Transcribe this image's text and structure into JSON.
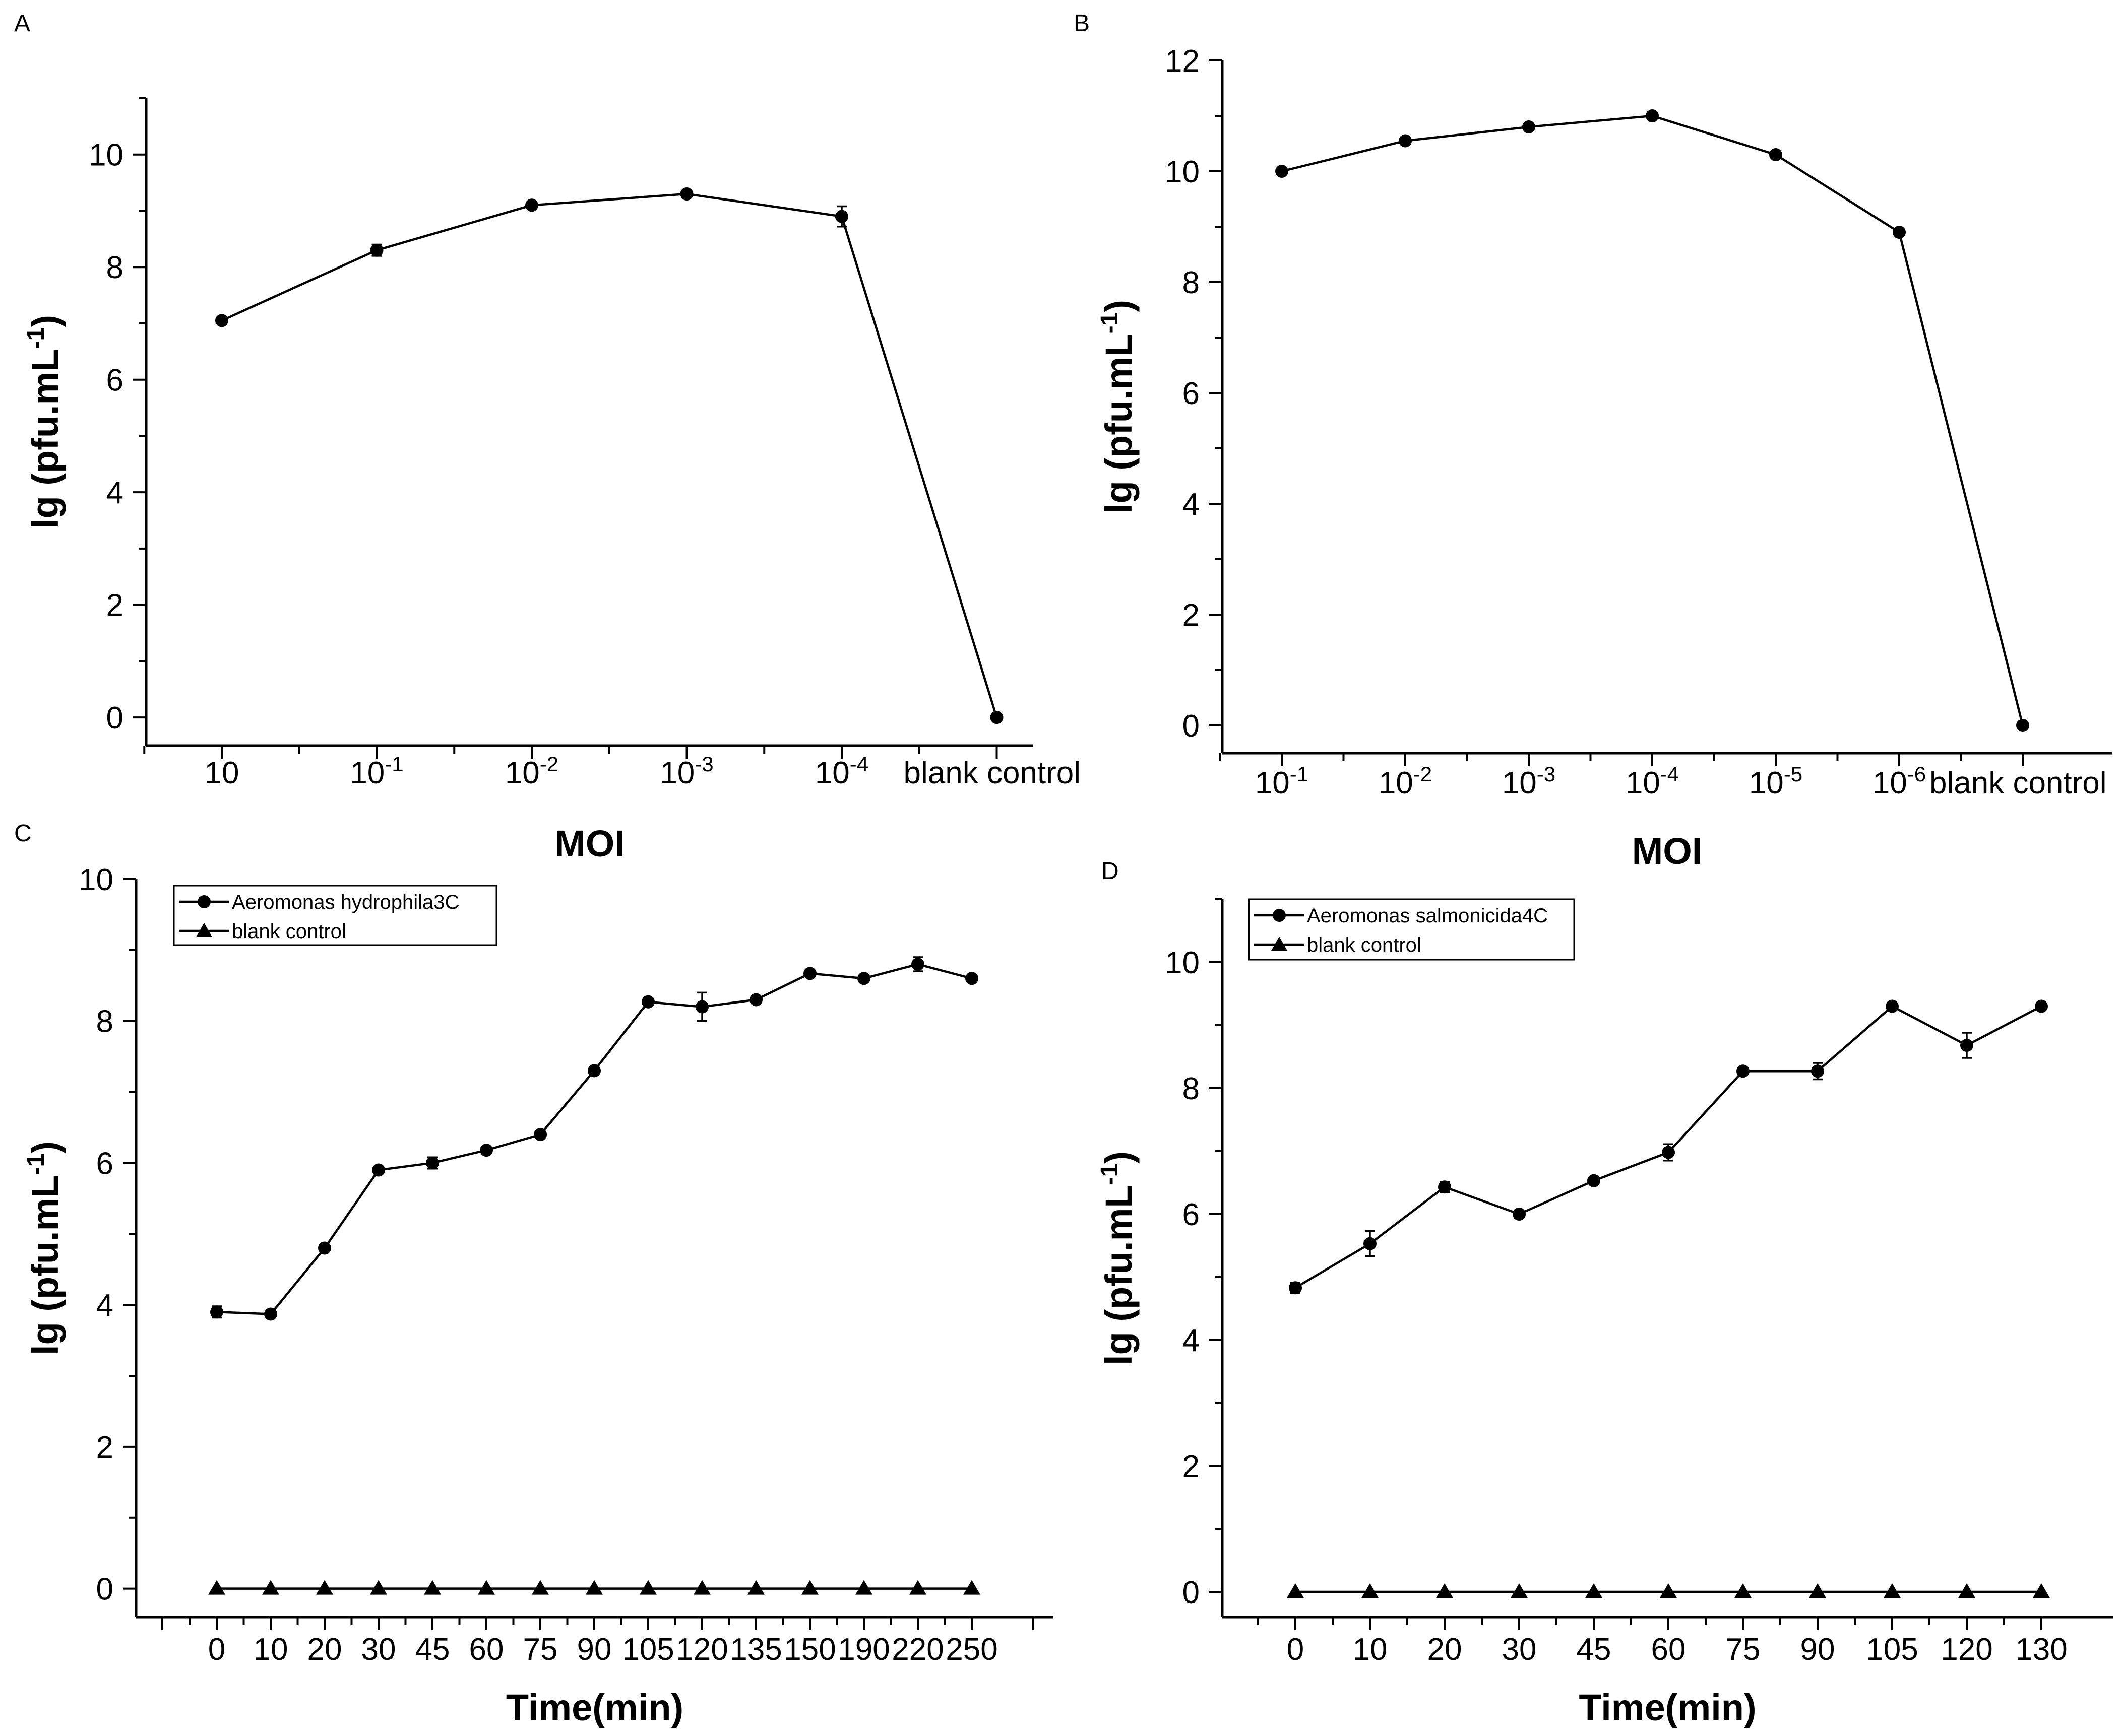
{
  "chart_data": [
    {
      "panel": "A",
      "type": "line",
      "categories": [
        "10",
        "10-1",
        "10-2",
        "10-3",
        "10-4",
        "blank control"
      ],
      "tick_labels": [
        {
          "base": "10",
          "exp": ""
        },
        {
          "base": "10",
          "exp": "-1"
        },
        {
          "base": "10",
          "exp": "-2"
        },
        {
          "base": "10",
          "exp": "-3"
        },
        {
          "base": "10",
          "exp": "-4"
        },
        {
          "base": "blank control",
          "exp": ""
        }
      ],
      "series": [
        {
          "name": "",
          "marker": "circle",
          "values": [
            7.05,
            8.3,
            9.1,
            9.3,
            8.9,
            0.0
          ],
          "errors": [
            0.05,
            0.1,
            0.05,
            0.05,
            0.18,
            0.0
          ]
        }
      ],
      "title": "",
      "xlabel": "MOI",
      "ylabel": "lg (pfu.mL",
      "ylabel_sup": "-1",
      "ylabel_close": ")",
      "ylim": [
        -0.5,
        11
      ],
      "yticks": [
        0,
        2,
        4,
        6,
        8,
        10
      ],
      "legend": null
    },
    {
      "panel": "B",
      "type": "line",
      "categories": [
        "10-1",
        "10-2",
        "10-3",
        "10-4",
        "10-5",
        "10-6",
        "blank control"
      ],
      "tick_labels": [
        {
          "base": "10",
          "exp": "-1"
        },
        {
          "base": "10",
          "exp": "-2"
        },
        {
          "base": "10",
          "exp": "-3"
        },
        {
          "base": "10",
          "exp": "-4"
        },
        {
          "base": "10",
          "exp": "-5"
        },
        {
          "base": "10",
          "exp": "-6"
        },
        {
          "base": "blank control",
          "exp": ""
        }
      ],
      "series": [
        {
          "name": "",
          "marker": "circle",
          "values": [
            10.0,
            10.55,
            10.8,
            11.0,
            10.3,
            8.9,
            0.0
          ],
          "errors": [
            0.05,
            0.05,
            0.05,
            0.05,
            0.05,
            0.05,
            0.0
          ]
        }
      ],
      "title": "",
      "xlabel": "MOI",
      "ylabel": "lg (pfu.mL",
      "ylabel_sup": "-1",
      "ylabel_close": ")",
      "ylim": [
        -0.5,
        12
      ],
      "yticks": [
        0,
        2,
        4,
        6,
        8,
        10,
        12
      ],
      "legend": null
    },
    {
      "panel": "C",
      "type": "line",
      "categories": [
        "0",
        "10",
        "20",
        "30",
        "45",
        "60",
        "75",
        "90",
        "105",
        "120",
        "135",
        "150",
        "190",
        "220",
        "250"
      ],
      "tick_labels": [
        {
          "base": "0",
          "exp": ""
        },
        {
          "base": "10",
          "exp": ""
        },
        {
          "base": "20",
          "exp": ""
        },
        {
          "base": "30",
          "exp": ""
        },
        {
          "base": "45",
          "exp": ""
        },
        {
          "base": "60",
          "exp": ""
        },
        {
          "base": "75",
          "exp": ""
        },
        {
          "base": "90",
          "exp": ""
        },
        {
          "base": "105",
          "exp": ""
        },
        {
          "base": "120",
          "exp": ""
        },
        {
          "base": "135",
          "exp": ""
        },
        {
          "base": "150",
          "exp": ""
        },
        {
          "base": "190",
          "exp": ""
        },
        {
          "base": "220",
          "exp": ""
        },
        {
          "base": "250",
          "exp": ""
        }
      ],
      "series": [
        {
          "name": "Aeromonas hydrophila3C",
          "marker": "circle",
          "values": [
            3.9,
            3.87,
            4.8,
            5.9,
            6.0,
            6.18,
            6.4,
            7.3,
            8.27,
            8.2,
            8.3,
            8.67,
            8.6,
            8.8,
            8.6
          ],
          "errors": [
            0.08,
            0.03,
            0.03,
            0.03,
            0.08,
            0.03,
            0.03,
            0.03,
            0.03,
            0.2,
            0.03,
            0.03,
            0.03,
            0.1,
            0.03
          ]
        },
        {
          "name": "blank control",
          "marker": "triangle",
          "values": [
            0,
            0,
            0,
            0,
            0,
            0,
            0,
            0,
            0,
            0,
            0,
            0,
            0,
            0,
            0
          ],
          "errors": []
        }
      ],
      "title": "",
      "xlabel": "Time(min)",
      "ylabel": "lg (pfu.mL",
      "ylabel_sup": "-1",
      "ylabel_close": ")",
      "ylim": [
        -0.4,
        10
      ],
      "yticks": [
        0,
        2,
        4,
        6,
        8,
        10
      ],
      "legend": "top-left"
    },
    {
      "panel": "D",
      "type": "line",
      "categories": [
        "0",
        "10",
        "20",
        "30",
        "45",
        "60",
        "75",
        "90",
        "105",
        "120",
        "130"
      ],
      "tick_labels": [
        {
          "base": "0",
          "exp": ""
        },
        {
          "base": "10",
          "exp": ""
        },
        {
          "base": "20",
          "exp": ""
        },
        {
          "base": "30",
          "exp": ""
        },
        {
          "base": "45",
          "exp": ""
        },
        {
          "base": "60",
          "exp": ""
        },
        {
          "base": "75",
          "exp": ""
        },
        {
          "base": "90",
          "exp": ""
        },
        {
          "base": "105",
          "exp": ""
        },
        {
          "base": "120",
          "exp": ""
        },
        {
          "base": "130",
          "exp": ""
        }
      ],
      "series": [
        {
          "name": "Aeromonas salmonicida4C",
          "marker": "circle",
          "values": [
            4.83,
            5.53,
            6.43,
            6.0,
            6.53,
            6.98,
            8.27,
            8.27,
            9.3,
            8.68,
            9.3
          ],
          "errors": [
            0.08,
            0.2,
            0.08,
            0.06,
            0.03,
            0.13,
            0.03,
            0.13,
            0.03,
            0.2,
            0.03
          ]
        },
        {
          "name": "blank control",
          "marker": "triangle",
          "values": [
            0,
            0,
            0,
            0,
            0,
            0,
            0,
            0,
            0,
            0,
            0
          ],
          "errors": []
        }
      ],
      "title": "",
      "xlabel": "Time(min)",
      "ylabel": "lg (pfu.mL",
      "ylabel_sup": "-1",
      "ylabel_close": ")",
      "ylim": [
        -0.4,
        11
      ],
      "yticks": [
        0,
        2,
        4,
        6,
        8,
        10
      ],
      "legend": "top-left"
    }
  ]
}
